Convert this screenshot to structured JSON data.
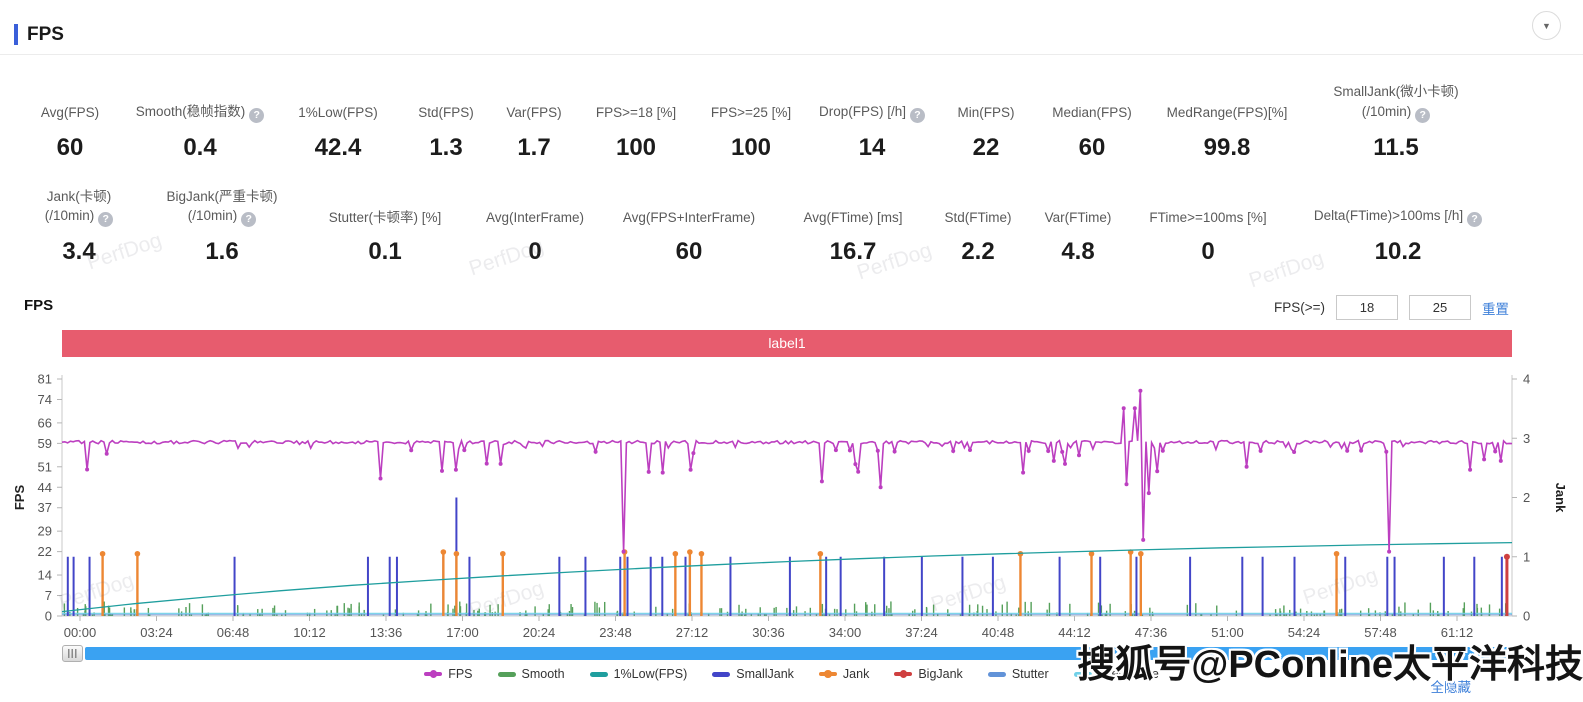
{
  "header": {
    "title": "FPS",
    "collapse_icon": "▼"
  },
  "metrics": {
    "row1": [
      {
        "label": "Avg(FPS)",
        "value": "60"
      },
      {
        "label": "Smooth(稳帧指数)",
        "value": "0.4",
        "help": true
      },
      {
        "label": "1%Low(FPS)",
        "value": "42.4"
      },
      {
        "label": "Std(FPS)",
        "value": "1.3"
      },
      {
        "label": "Var(FPS)",
        "value": "1.7"
      },
      {
        "label": "FPS>=18 [%]",
        "value": "100"
      },
      {
        "label": "FPS>=25 [%]",
        "value": "100"
      },
      {
        "label": "Drop(FPS) [/h]",
        "value": "14",
        "help": true
      },
      {
        "label": "Min(FPS)",
        "value": "22"
      },
      {
        "label": "Median(FPS)",
        "value": "60"
      },
      {
        "label": "MedRange(FPS)[%]",
        "value": "99.8"
      },
      {
        "label": "SmallJank(微小卡顿)\n(/10min)",
        "value": "11.5",
        "help": true
      }
    ],
    "row2": [
      {
        "label": "Jank(卡顿)\n(/10min)",
        "value": "3.4",
        "help": true
      },
      {
        "label": "BigJank(严重卡顿)\n(/10min)",
        "value": "1.6",
        "help": true
      },
      {
        "label": "Stutter(卡顿率) [%]",
        "value": "0.1"
      },
      {
        "label": "Avg(InterFrame)",
        "value": "0"
      },
      {
        "label": "Avg(FPS+InterFrame)",
        "value": "60"
      },
      {
        "label": "Avg(FTime) [ms]",
        "value": "16.7"
      },
      {
        "label": "Std(FTime)",
        "value": "2.2"
      },
      {
        "label": "Var(FTime)",
        "value": "4.8"
      },
      {
        "label": "FTime>=100ms [%]",
        "value": "0"
      },
      {
        "label": "Delta(FTime)>100ms [/h]",
        "value": "10.2",
        "help": true
      }
    ]
  },
  "chart_controls": {
    "section_title": "FPS",
    "filter_label": "FPS(>=)",
    "input1": "18",
    "input2": "25",
    "reset_label": "重置"
  },
  "banner": {
    "text": "label1",
    "color": "#e75c6e"
  },
  "chart_data": {
    "type": "line",
    "banner_label": "label1",
    "x_axis": {
      "tick_labels": [
        "00:00",
        "03:24",
        "06:48",
        "10:12",
        "13:36",
        "17:00",
        "20:24",
        "23:48",
        "27:12",
        "30:36",
        "34:00",
        "37:24",
        "40:48",
        "44:12",
        "47:36",
        "51:00",
        "54:24",
        "57:48",
        "61:12"
      ],
      "tick_interval_seconds": 204
    },
    "y_axis_left": {
      "label": "FPS",
      "ticks": [
        0,
        7,
        14,
        22,
        29,
        37,
        44,
        51,
        59,
        66,
        74,
        81
      ],
      "max": 81
    },
    "y_axis_right": {
      "label": "Jank",
      "ticks": [
        0,
        1,
        2,
        3,
        4
      ],
      "max": 4
    },
    "legend": [
      {
        "name": "FPS",
        "color": "#bc3fc0",
        "marker": "line-dot"
      },
      {
        "name": "Smooth",
        "color": "#55a05a",
        "marker": "bar"
      },
      {
        "name": "1%Low(FPS)",
        "color": "#1f9e9e",
        "marker": "bar"
      },
      {
        "name": "SmallJank",
        "color": "#4245c8",
        "marker": "bar"
      },
      {
        "name": "Jank",
        "color": "#ed8733",
        "marker": "line-dot"
      },
      {
        "name": "BigJank",
        "color": "#cf4040",
        "marker": "line-dot"
      },
      {
        "name": "Stutter",
        "color": "#6293d8",
        "marker": "bar"
      },
      {
        "name": "InterFrame",
        "color": "#6fd0e8",
        "marker": "bar"
      }
    ],
    "series": {
      "fps": {
        "baseline": 59.4,
        "events": [
          [
            0.219,
            47
          ],
          [
            0.271,
            50
          ],
          [
            0.302,
            52
          ],
          [
            0.388,
            22
          ],
          [
            0.414,
            49
          ],
          [
            0.433,
            50
          ],
          [
            0.524,
            46
          ],
          [
            0.564,
            44
          ],
          [
            0.662,
            49
          ],
          [
            0.691,
            52
          ],
          [
            0.733,
            71
          ],
          [
            0.735,
            45
          ],
          [
            0.739,
            71
          ],
          [
            0.7435,
            77
          ],
          [
            0.746,
            26
          ],
          [
            0.749,
            42
          ],
          [
            0.817,
            51
          ],
          [
            0.916,
            22
          ],
          [
            0.971,
            50
          ],
          [
            0.993,
            53
          ]
        ]
      },
      "one_percent_low_points": [
        [
          0,
          1.5
        ],
        [
          0.05,
          4.2
        ],
        [
          0.1,
          6.5
        ],
        [
          0.15,
          8.6
        ],
        [
          0.2,
          10.5
        ],
        [
          0.25,
          12.1
        ],
        [
          0.3,
          13.6
        ],
        [
          0.35,
          15
        ],
        [
          0.4,
          16.3
        ],
        [
          0.45,
          17.5
        ],
        [
          0.5,
          18.6
        ],
        [
          0.55,
          19.6
        ],
        [
          0.6,
          20.5
        ],
        [
          0.65,
          21.3
        ],
        [
          0.7,
          22
        ],
        [
          0.75,
          22.7
        ],
        [
          0.8,
          23.3
        ],
        [
          0.85,
          23.8
        ],
        [
          0.9,
          24.3
        ],
        [
          0.95,
          24.7
        ],
        [
          1,
          25.1
        ]
      ],
      "small_jank_events": [
        [
          0.004,
          1
        ],
        [
          0.008,
          1
        ],
        [
          0.019,
          1
        ],
        [
          0.119,
          1
        ],
        [
          0.211,
          1
        ],
        [
          0.226,
          1
        ],
        [
          0.231,
          1
        ],
        [
          0.263,
          1
        ],
        [
          0.272,
          2
        ],
        [
          0.281,
          1
        ],
        [
          0.343,
          1
        ],
        [
          0.361,
          1
        ],
        [
          0.385,
          1
        ],
        [
          0.39,
          1
        ],
        [
          0.406,
          1
        ],
        [
          0.414,
          1
        ],
        [
          0.43,
          1
        ],
        [
          0.461,
          1
        ],
        [
          0.502,
          1
        ],
        [
          0.527,
          1
        ],
        [
          0.537,
          1
        ],
        [
          0.567,
          1
        ],
        [
          0.593,
          1
        ],
        [
          0.621,
          1
        ],
        [
          0.642,
          1
        ],
        [
          0.688,
          1
        ],
        [
          0.716,
          1
        ],
        [
          0.741,
          1
        ],
        [
          0.778,
          1
        ],
        [
          0.814,
          1
        ],
        [
          0.828,
          1
        ],
        [
          0.85,
          1
        ],
        [
          0.885,
          1
        ],
        [
          0.914,
          1
        ],
        [
          0.919,
          1
        ],
        [
          0.953,
          1
        ],
        [
          0.974,
          1
        ],
        [
          0.993,
          1
        ]
      ],
      "jank_events": [
        [
          0.028,
          1.05
        ],
        [
          0.052,
          1.05
        ],
        [
          0.263,
          1.08
        ],
        [
          0.272,
          1.05
        ],
        [
          0.304,
          1.05
        ],
        [
          0.388,
          1.08
        ],
        [
          0.423,
          1.05
        ],
        [
          0.433,
          1.08
        ],
        [
          0.441,
          1.05
        ],
        [
          0.523,
          1.05
        ],
        [
          0.661,
          1.05
        ],
        [
          0.71,
          1.05
        ],
        [
          0.737,
          1.08
        ],
        [
          0.744,
          1.05
        ],
        [
          0.879,
          1.05
        ]
      ],
      "big_jank_events": [
        [
          0.9965,
          1.0
        ]
      ],
      "smooth": {
        "max_value": 5,
        "bar_count": 340
      },
      "stutter_baseline": 0,
      "interframe_baseline": 0
    }
  },
  "footer": {
    "hide_all_label": "全隐藏"
  },
  "watermarks": {
    "brand": "PerfDog",
    "overlay": "搜狐号@PConline太平洋科技"
  }
}
